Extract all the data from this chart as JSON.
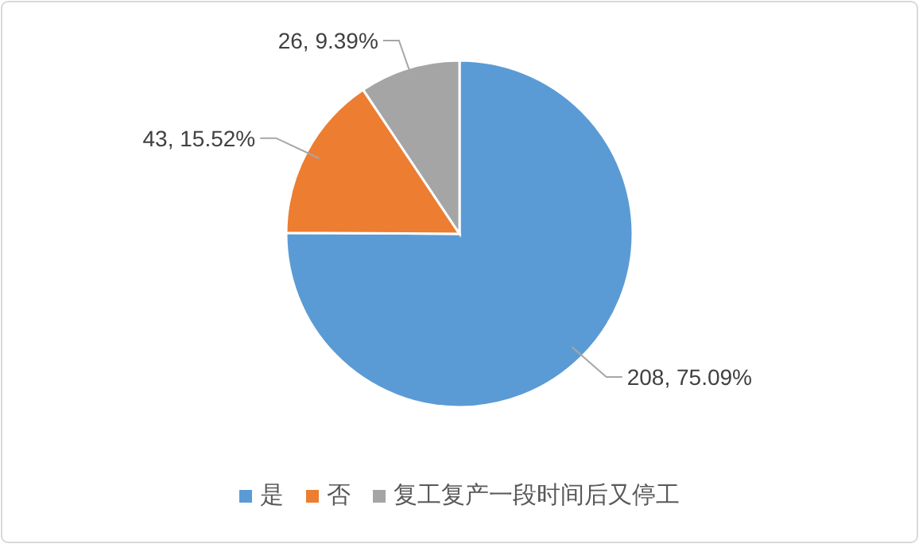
{
  "chart_data": {
    "type": "pie",
    "categories": [
      "是",
      "否",
      "复工复产一段时间后又停工"
    ],
    "values": [
      208,
      43,
      26
    ],
    "colors": [
      "#5b9bd5",
      "#ed7d31",
      "#a5a5a5"
    ],
    "value_labels": [
      "208, 75.09%",
      "43, 15.52%",
      "26, 9.39%"
    ],
    "legend": "bottom"
  }
}
